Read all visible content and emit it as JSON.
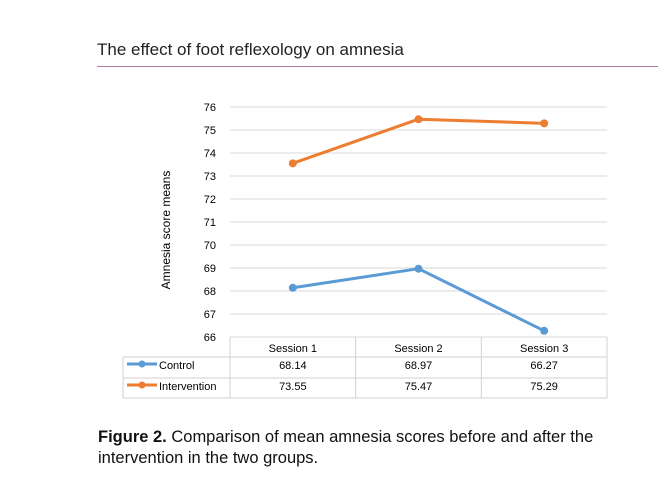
{
  "header": {
    "title": "The effect of foot reflexology on amnesia"
  },
  "caption": {
    "label": "Figure 2.",
    "text": " Comparison of mean amnesia scores before and after the intervention in the two groups."
  },
  "chart_data": {
    "type": "line",
    "title": "",
    "xlabel": "",
    "ylabel": "Amnesia score means",
    "categories": [
      "Session 1",
      "Session 2",
      "Session 3"
    ],
    "ylim": [
      66,
      76
    ],
    "yticks": [
      "66",
      "67",
      "68",
      "69",
      "70",
      "71",
      "72",
      "73",
      "74",
      "75",
      "76"
    ],
    "grid": true,
    "legend": "data-table",
    "series": [
      {
        "name": "Control",
        "color": "#5b9bd5",
        "values": [
          68.14,
          68.97,
          66.27
        ],
        "labels": [
          "68.14",
          "68.97",
          "66.27"
        ]
      },
      {
        "name": "Intervention",
        "color": "#ed7d31",
        "values": [
          73.55,
          75.47,
          75.29
        ],
        "labels": [
          "73.55",
          "75.47",
          "75.29"
        ]
      }
    ]
  }
}
